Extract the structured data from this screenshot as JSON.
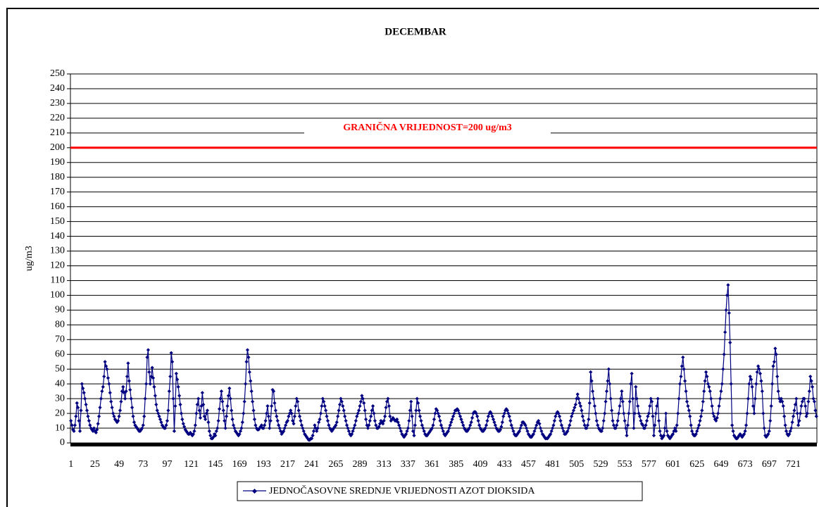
{
  "chart_data": {
    "type": "line",
    "title": "DECEMBAR",
    "y_label": "ug/m3",
    "categories": [
      "1",
      null,
      null,
      null,
      null,
      null,
      null,
      null,
      null,
      null,
      null,
      null,
      null,
      null,
      null,
      null,
      null,
      null,
      null,
      null,
      null,
      null,
      null,
      null,
      "25",
      null,
      null,
      null,
      null,
      null,
      null,
      null,
      null,
      null,
      null,
      null,
      null,
      null,
      null,
      null,
      null,
      null,
      null,
      null,
      null,
      null,
      null,
      null,
      "49",
      null,
      null,
      null,
      null,
      null,
      null,
      null,
      null,
      null,
      null,
      null,
      null,
      null,
      null,
      null,
      null,
      null,
      null,
      null,
      null,
      null,
      null,
      null,
      "73",
      null,
      null,
      null,
      null,
      null,
      null,
      null,
      null,
      null,
      null,
      null,
      null,
      null,
      null,
      null,
      null,
      null,
      null,
      null,
      null,
      null,
      null,
      null,
      "97",
      null,
      null,
      null,
      null,
      null,
      null,
      null,
      null,
      null,
      null,
      null,
      null,
      null,
      null,
      null,
      null,
      null,
      null,
      null,
      null,
      null,
      null,
      null,
      "121",
      null,
      null,
      null,
      null,
      null,
      null,
      null,
      null,
      null,
      null,
      null,
      null,
      null,
      null,
      null,
      null,
      null,
      null,
      null,
      null,
      null,
      null,
      null,
      "145",
      null,
      null,
      null,
      null,
      null,
      null,
      null,
      null,
      null,
      null,
      null,
      null,
      null,
      null,
      null,
      null,
      null,
      null,
      null,
      null,
      null,
      null,
      null,
      "169",
      null,
      null,
      null,
      null,
      null,
      null,
      null,
      null,
      null,
      null,
      null,
      null,
      null,
      null,
      null,
      null,
      null,
      null,
      null,
      null,
      null,
      null,
      null,
      "193",
      null,
      null,
      null,
      null,
      null,
      null,
      null,
      null,
      null,
      null,
      null,
      null,
      null,
      null,
      null,
      null,
      null,
      null,
      null,
      null,
      null,
      null,
      null,
      "217",
      null,
      null,
      null,
      null,
      null,
      null,
      null,
      null,
      null,
      null,
      null,
      null,
      null,
      null,
      null,
      null,
      null,
      null,
      null,
      null,
      null,
      null,
      null,
      "241",
      null,
      null,
      null,
      null,
      null,
      null,
      null,
      null,
      null,
      null,
      null,
      null,
      null,
      null,
      null,
      null,
      null,
      null,
      null,
      null,
      null,
      null,
      null,
      "265",
      null,
      null,
      null,
      null,
      null,
      null,
      null,
      null,
      null,
      null,
      null,
      null,
      null,
      null,
      null,
      null,
      null,
      null,
      null,
      null,
      null,
      null,
      null,
      "289",
      null,
      null,
      null,
      null,
      null,
      null,
      null,
      null,
      null,
      null,
      null,
      null,
      null,
      null,
      null,
      null,
      null,
      null,
      null,
      null,
      null,
      null,
      null,
      "313",
      null,
      null,
      null,
      null,
      null,
      null,
      null,
      null,
      null,
      null,
      null,
      null,
      null,
      null,
      null,
      null,
      null,
      null,
      null,
      null,
      null,
      null,
      null,
      "337",
      null,
      null,
      null,
      null,
      null,
      null,
      null,
      null,
      null,
      null,
      null,
      null,
      null,
      null,
      null,
      null,
      null,
      null,
      null,
      null,
      null,
      null,
      null,
      "361",
      null,
      null,
      null,
      null,
      null,
      null,
      null,
      null,
      null,
      null,
      null,
      null,
      null,
      null,
      null,
      null,
      null,
      null,
      null,
      null,
      null,
      null,
      null,
      "385",
      null,
      null,
      null,
      null,
      null,
      null,
      null,
      null,
      null,
      null,
      null,
      null,
      null,
      null,
      null,
      null,
      null,
      null,
      null,
      null,
      null,
      null,
      null,
      "409",
      null,
      null,
      null,
      null,
      null,
      null,
      null,
      null,
      null,
      null,
      null,
      null,
      null,
      null,
      null,
      null,
      null,
      null,
      null,
      null,
      null,
      null,
      null,
      "433",
      null,
      null,
      null,
      null,
      null,
      null,
      null,
      null,
      null,
      null,
      null,
      null,
      null,
      null,
      null,
      null,
      null,
      null,
      null,
      null,
      null,
      null,
      null,
      "457",
      null,
      null,
      null,
      null,
      null,
      null,
      null,
      null,
      null,
      null,
      null,
      null,
      null,
      null,
      null,
      null,
      null,
      null,
      null,
      null,
      null,
      null,
      null,
      "481",
      null,
      null,
      null,
      null,
      null,
      null,
      null,
      null,
      null,
      null,
      null,
      null,
      null,
      null,
      null,
      null,
      null,
      null,
      null,
      null,
      null,
      null,
      null,
      "505",
      null,
      null,
      null,
      null,
      null,
      null,
      null,
      null,
      null,
      null,
      null,
      null,
      null,
      null,
      null,
      null,
      null,
      null,
      null,
      null,
      null,
      null,
      null,
      "529",
      null,
      null,
      null,
      null,
      null,
      null,
      null,
      null,
      null,
      null,
      null,
      null,
      null,
      null,
      null,
      null,
      null,
      null,
      null,
      null,
      null,
      null,
      null,
      "553",
      null,
      null,
      null,
      null,
      null,
      null,
      null,
      null,
      null,
      null,
      null,
      null,
      null,
      null,
      null,
      null,
      null,
      null,
      null,
      null,
      null,
      null,
      null,
      "577",
      null,
      null,
      null,
      null,
      null,
      null,
      null,
      null,
      null,
      null,
      null,
      null,
      null,
      null,
      null,
      null,
      null,
      null,
      null,
      null,
      null,
      null,
      null,
      "601",
      null,
      null,
      null,
      null,
      null,
      null,
      null,
      null,
      null,
      null,
      null,
      null,
      null,
      null,
      null,
      null,
      null,
      null,
      null,
      null,
      null,
      null,
      null,
      "625",
      null,
      null,
      null,
      null,
      null,
      null,
      null,
      null,
      null,
      null,
      null,
      null,
      null,
      null,
      null,
      null,
      null,
      null,
      null,
      null,
      null,
      null,
      null,
      "649",
      null,
      null,
      null,
      null,
      null,
      null,
      null,
      null,
      null,
      null,
      null,
      null,
      null,
      null,
      null,
      null,
      null,
      null,
      null,
      null,
      null,
      null,
      null,
      "673",
      null,
      null,
      null,
      null,
      null,
      null,
      null,
      null,
      null,
      null,
      null,
      null,
      null,
      null,
      null,
      null,
      null,
      null,
      null,
      null,
      null,
      null,
      null,
      "697",
      null,
      null,
      null,
      null,
      null,
      null,
      null,
      null,
      null,
      null,
      null,
      null,
      null,
      null,
      null,
      null,
      null,
      null,
      null,
      null,
      null,
      null,
      null,
      "721",
      null,
      null,
      null,
      null,
      null,
      null,
      null,
      null,
      null,
      null,
      null,
      null,
      null,
      null,
      null,
      null,
      null,
      null,
      null,
      null,
      null,
      null,
      null
    ],
    "series": [
      {
        "name": "JEDNOČASOVNE SREDNJE VRIJEDNOSTI AZOT DIOKSIDA",
        "color": "#000080",
        "values": [
          15,
          12,
          9,
          8,
          12,
          18,
          27,
          24,
          15,
          8,
          22,
          40,
          37,
          34,
          30,
          26,
          22,
          18,
          15,
          12,
          10,
          9,
          8,
          10,
          8,
          7,
          9,
          13,
          18,
          24,
          30,
          35,
          38,
          45,
          55,
          52,
          50,
          44,
          40,
          34,
          28,
          24,
          20,
          18,
          16,
          15,
          14,
          15,
          18,
          22,
          28,
          35,
          38,
          34,
          30,
          35,
          45,
          54,
          42,
          36,
          30,
          24,
          18,
          14,
          12,
          11,
          10,
          9,
          8,
          8,
          9,
          10,
          12,
          18,
          30,
          40,
          58,
          63,
          48,
          40,
          45,
          51,
          44,
          38,
          32,
          26,
          22,
          20,
          18,
          16,
          14,
          12,
          11,
          10,
          10,
          12,
          15,
          22,
          35,
          45,
          61,
          55,
          30,
          8,
          25,
          47,
          43,
          38,
          32,
          26,
          20,
          16,
          13,
          11,
          9,
          8,
          7,
          6,
          6,
          7,
          6,
          5,
          6,
          8,
          12,
          20,
          26,
          30,
          22,
          17,
          25,
          34,
          26,
          18,
          16,
          20,
          22,
          14,
          8,
          5,
          3,
          3,
          4,
          6,
          5,
          8,
          10,
          15,
          23,
          30,
          35,
          28,
          22,
          15,
          10,
          18,
          25,
          32,
          37,
          30,
          22,
          16,
          12,
          10,
          8,
          7,
          6,
          5,
          6,
          8,
          10,
          14,
          20,
          28,
          40,
          55,
          63,
          58,
          48,
          42,
          35,
          28,
          22,
          16,
          12,
          10,
          9,
          9,
          10,
          11,
          12,
          10,
          10,
          12,
          15,
          20,
          25,
          18,
          10,
          15,
          25,
          36,
          35,
          27,
          22,
          18,
          15,
          12,
          10,
          8,
          6,
          7,
          8,
          10,
          12,
          14,
          15,
          18,
          20,
          22,
          20,
          15,
          13,
          18,
          25,
          30,
          28,
          22,
          18,
          15,
          12,
          10,
          8,
          6,
          5,
          4,
          3,
          2,
          2,
          3,
          3,
          5,
          8,
          12,
          10,
          8,
          10,
          14,
          16,
          20,
          25,
          30,
          28,
          25,
          22,
          18,
          15,
          12,
          10,
          9,
          8,
          9,
          10,
          11,
          12,
          14,
          18,
          22,
          26,
          30,
          28,
          25,
          22,
          18,
          15,
          12,
          10,
          8,
          6,
          5,
          6,
          8,
          10,
          12,
          15,
          18,
          20,
          22,
          25,
          28,
          32,
          30,
          27,
          22,
          16,
          12,
          10,
          12,
          15,
          18,
          22,
          25,
          20,
          15,
          12,
          10,
          10,
          11,
          13,
          15,
          14,
          13,
          15,
          18,
          24,
          28,
          30,
          25,
          18,
          15,
          16,
          17,
          16,
          15,
          15,
          16,
          14,
          12,
          10,
          8,
          6,
          5,
          4,
          5,
          6,
          8,
          10,
          15,
          22,
          28,
          18,
          8,
          5,
          12,
          22,
          30,
          27,
          22,
          18,
          15,
          12,
          10,
          8,
          6,
          5,
          5,
          6,
          7,
          8,
          9,
          10,
          12,
          16,
          20,
          23,
          22,
          20,
          18,
          15,
          12,
          10,
          8,
          6,
          5,
          6,
          7,
          8,
          10,
          12,
          14,
          16,
          18,
          20,
          22,
          22,
          23,
          22,
          20,
          18,
          16,
          14,
          12,
          10,
          9,
          8,
          8,
          9,
          10,
          12,
          14,
          17,
          20,
          21,
          21,
          20,
          18,
          15,
          12,
          10,
          9,
          8,
          8,
          9,
          10,
          12,
          15,
          18,
          20,
          21,
          20,
          18,
          16,
          14,
          12,
          10,
          9,
          8,
          8,
          9,
          11,
          14,
          18,
          20,
          22,
          23,
          22,
          20,
          18,
          15,
          12,
          10,
          8,
          6,
          5,
          5,
          6,
          7,
          8,
          10,
          12,
          14,
          14,
          13,
          12,
          10,
          8,
          6,
          5,
          4,
          4,
          5,
          6,
          8,
          10,
          12,
          14,
          15,
          13,
          10,
          8,
          6,
          5,
          4,
          3,
          3,
          3,
          4,
          5,
          6,
          8,
          10,
          12,
          15,
          18,
          20,
          21,
          20,
          18,
          15,
          12,
          10,
          8,
          6,
          6,
          7,
          8,
          10,
          12,
          15,
          18,
          20,
          22,
          24,
          26,
          30,
          33,
          30,
          27,
          25,
          22,
          18,
          15,
          12,
          10,
          10,
          12,
          16,
          27,
          48,
          42,
          35,
          30,
          25,
          20,
          15,
          12,
          10,
          9,
          8,
          8,
          10,
          15,
          20,
          28,
          35,
          42,
          50,
          40,
          30,
          22,
          15,
          12,
          10,
          10,
          12,
          15,
          20,
          25,
          30,
          35,
          28,
          20,
          15,
          10,
          5,
          12,
          20,
          28,
          40,
          47,
          30,
          10,
          20,
          38,
          30,
          25,
          20,
          18,
          15,
          13,
          12,
          10,
          10,
          12,
          15,
          18,
          20,
          25,
          30,
          28,
          18,
          5,
          12,
          20,
          25,
          30,
          15,
          8,
          5,
          3,
          4,
          5,
          10,
          20,
          8,
          5,
          4,
          3,
          4,
          5,
          6,
          8,
          10,
          8,
          12,
          20,
          30,
          40,
          45,
          52,
          58,
          50,
          42,
          35,
          28,
          25,
          22,
          18,
          12,
          8,
          6,
          5,
          5,
          6,
          8,
          10,
          12,
          15,
          18,
          22,
          28,
          35,
          42,
          48,
          45,
          40,
          38,
          35,
          30,
          25,
          20,
          18,
          16,
          15,
          17,
          20,
          25,
          30,
          35,
          40,
          50,
          60,
          75,
          90,
          100,
          107,
          88,
          68,
          40,
          12,
          8,
          5,
          4,
          3,
          3,
          4,
          5,
          6,
          5,
          4,
          5,
          6,
          8,
          12,
          20,
          30,
          40,
          45,
          43,
          38,
          25,
          20,
          30,
          40,
          48,
          52,
          50,
          47,
          42,
          35,
          20,
          10,
          5,
          4,
          5,
          6,
          8,
          15,
          25,
          40,
          52,
          55,
          64,
          60,
          45,
          35,
          30,
          28,
          30,
          28,
          25,
          18,
          12,
          8,
          6,
          5,
          6,
          8,
          10,
          14,
          18,
          22,
          26,
          30,
          20,
          12,
          15,
          20,
          25,
          28,
          30,
          30,
          25,
          18,
          20,
          28,
          35,
          45,
          42,
          38,
          30,
          28,
          22,
          18
        ]
      }
    ],
    "ylim": [
      0,
      250
    ],
    "yticks": [
      0,
      10,
      20,
      30,
      40,
      50,
      60,
      70,
      80,
      90,
      100,
      110,
      120,
      130,
      140,
      150,
      160,
      170,
      180,
      190,
      200,
      210,
      220,
      230,
      240,
      250
    ],
    "grid": true,
    "threshold": {
      "value": 200,
      "label": "GRANIČNA VRIJEDNOST=200 ug/m3",
      "color": "#ff0000"
    },
    "legend": "bottom"
  }
}
